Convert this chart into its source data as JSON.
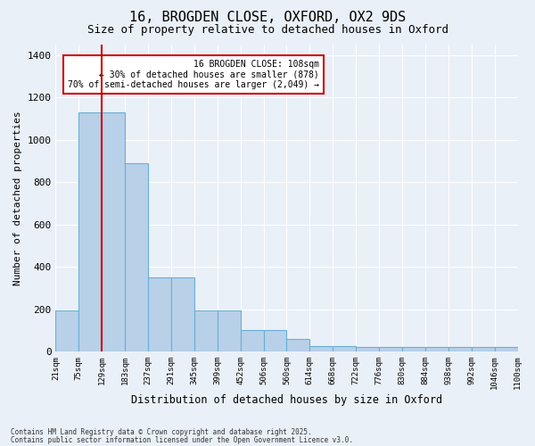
{
  "title1": "16, BROGDEN CLOSE, OXFORD, OX2 9DS",
  "title2": "Size of property relative to detached houses in Oxford",
  "xlabel": "Distribution of detached houses by size in Oxford",
  "ylabel": "Number of detached properties",
  "bin_labels": [
    "21sqm",
    "75sqm",
    "129sqm",
    "183sqm",
    "237sqm",
    "291sqm",
    "345sqm",
    "399sqm",
    "452sqm",
    "506sqm",
    "560sqm",
    "614sqm",
    "668sqm",
    "722sqm",
    "776sqm",
    "830sqm",
    "884sqm",
    "938sqm",
    "992sqm",
    "1046sqm",
    "1100sqm"
  ],
  "bar_values": [
    195,
    1130,
    1130,
    890,
    350,
    350,
    195,
    195,
    100,
    100,
    60,
    25,
    25,
    20,
    20,
    20,
    20,
    20,
    20,
    20
  ],
  "bar_color": "#b8d0e8",
  "bar_edgecolor": "#6aaed6",
  "bg_color": "#eaf0f8",
  "grid_color": "#ffffff",
  "vline_color": "#cc0000",
  "vline_pos": 2.0,
  "annotation_text": "16 BROGDEN CLOSE: 108sqm\n← 30% of detached houses are smaller (878)\n70% of semi-detached houses are larger (2,049) →",
  "annotation_box_color": "#cc0000",
  "footnote1": "Contains HM Land Registry data © Crown copyright and database right 2025.",
  "footnote2": "Contains public sector information licensed under the Open Government Licence v3.0.",
  "ylim": [
    0,
    1450
  ],
  "title1_fontsize": 11,
  "title2_fontsize": 9
}
